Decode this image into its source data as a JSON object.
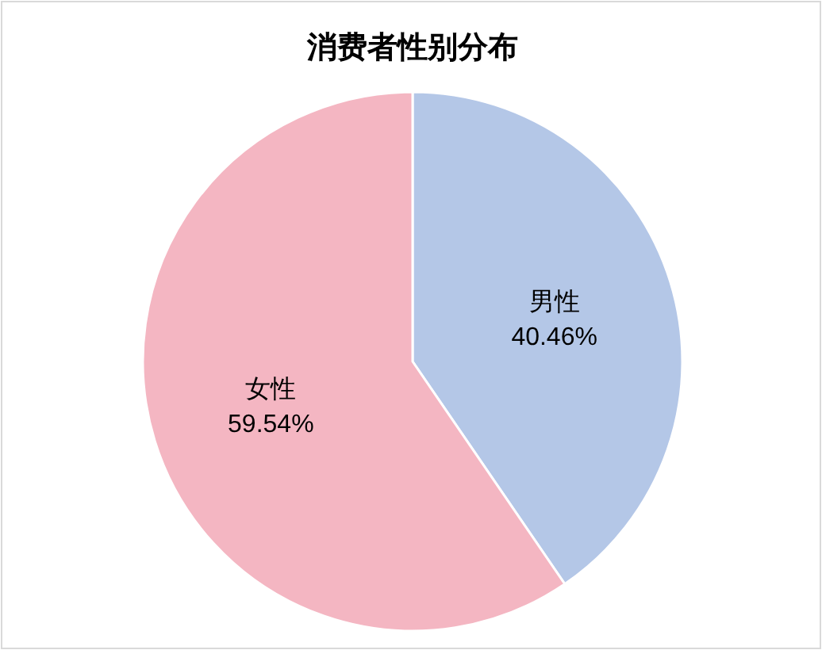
{
  "chart_data": {
    "type": "pie",
    "title": "消费者性别分布",
    "categories": [
      "男性",
      "女性"
    ],
    "values": [
      40.46,
      59.54
    ],
    "value_labels": [
      "40.46%",
      "59.54%"
    ],
    "colors": [
      "#b4c7e7",
      "#f4b6c2"
    ]
  }
}
